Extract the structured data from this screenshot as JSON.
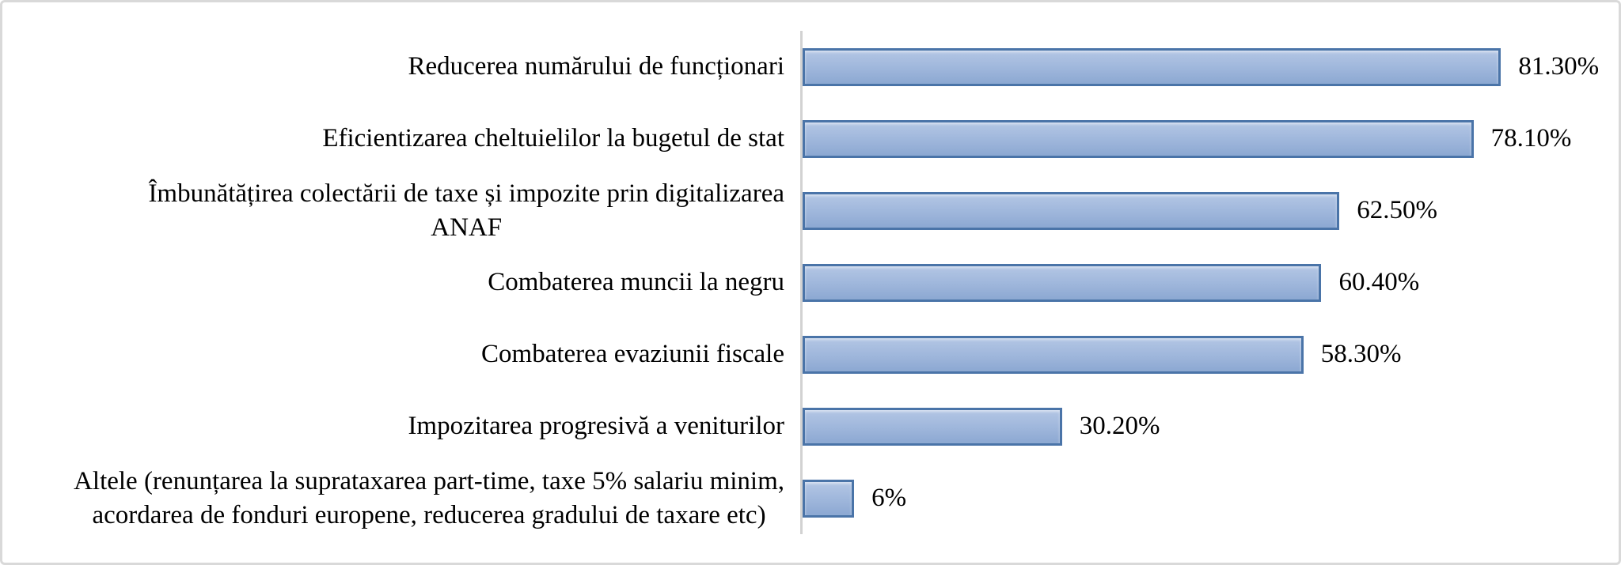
{
  "chart_data": {
    "type": "bar",
    "orientation": "horizontal",
    "title": "",
    "xlabel": "",
    "ylabel": "",
    "grid": false,
    "legend": false,
    "axis_max": 95,
    "categories": [
      "Reducerea numărului de funcționari",
      "Eficientizarea cheltuielilor la bugetul de stat",
      "Îmbunătățirea colectării de taxe și impozite prin digitalizarea\nANAF",
      "Combaterea muncii la negru",
      "Combaterea evaziunii fiscale",
      "Impozitarea progresivă a veniturilor",
      "Altele (renunțarea la suprataxarea part-time, taxe 5% salariu minim,\nacordarea de fonduri europene, reducerea gradului de taxare etc)"
    ],
    "values": [
      81.3,
      78.1,
      62.5,
      60.4,
      58.3,
      30.2,
      6
    ],
    "value_labels": [
      "81.30%",
      "78.10%",
      "62.50%",
      "60.40%",
      "58.30%",
      "30.20%",
      "6%"
    ]
  },
  "colors": {
    "bar_fill_top": "#b3c6e4",
    "bar_fill_mid": "#a2b9dd",
    "bar_fill_bottom": "#8ca8d2",
    "bar_border": "#4a74a8",
    "axis_line": "#d2d2d2",
    "frame_border": "#d9d9d9",
    "text": "#000000"
  }
}
